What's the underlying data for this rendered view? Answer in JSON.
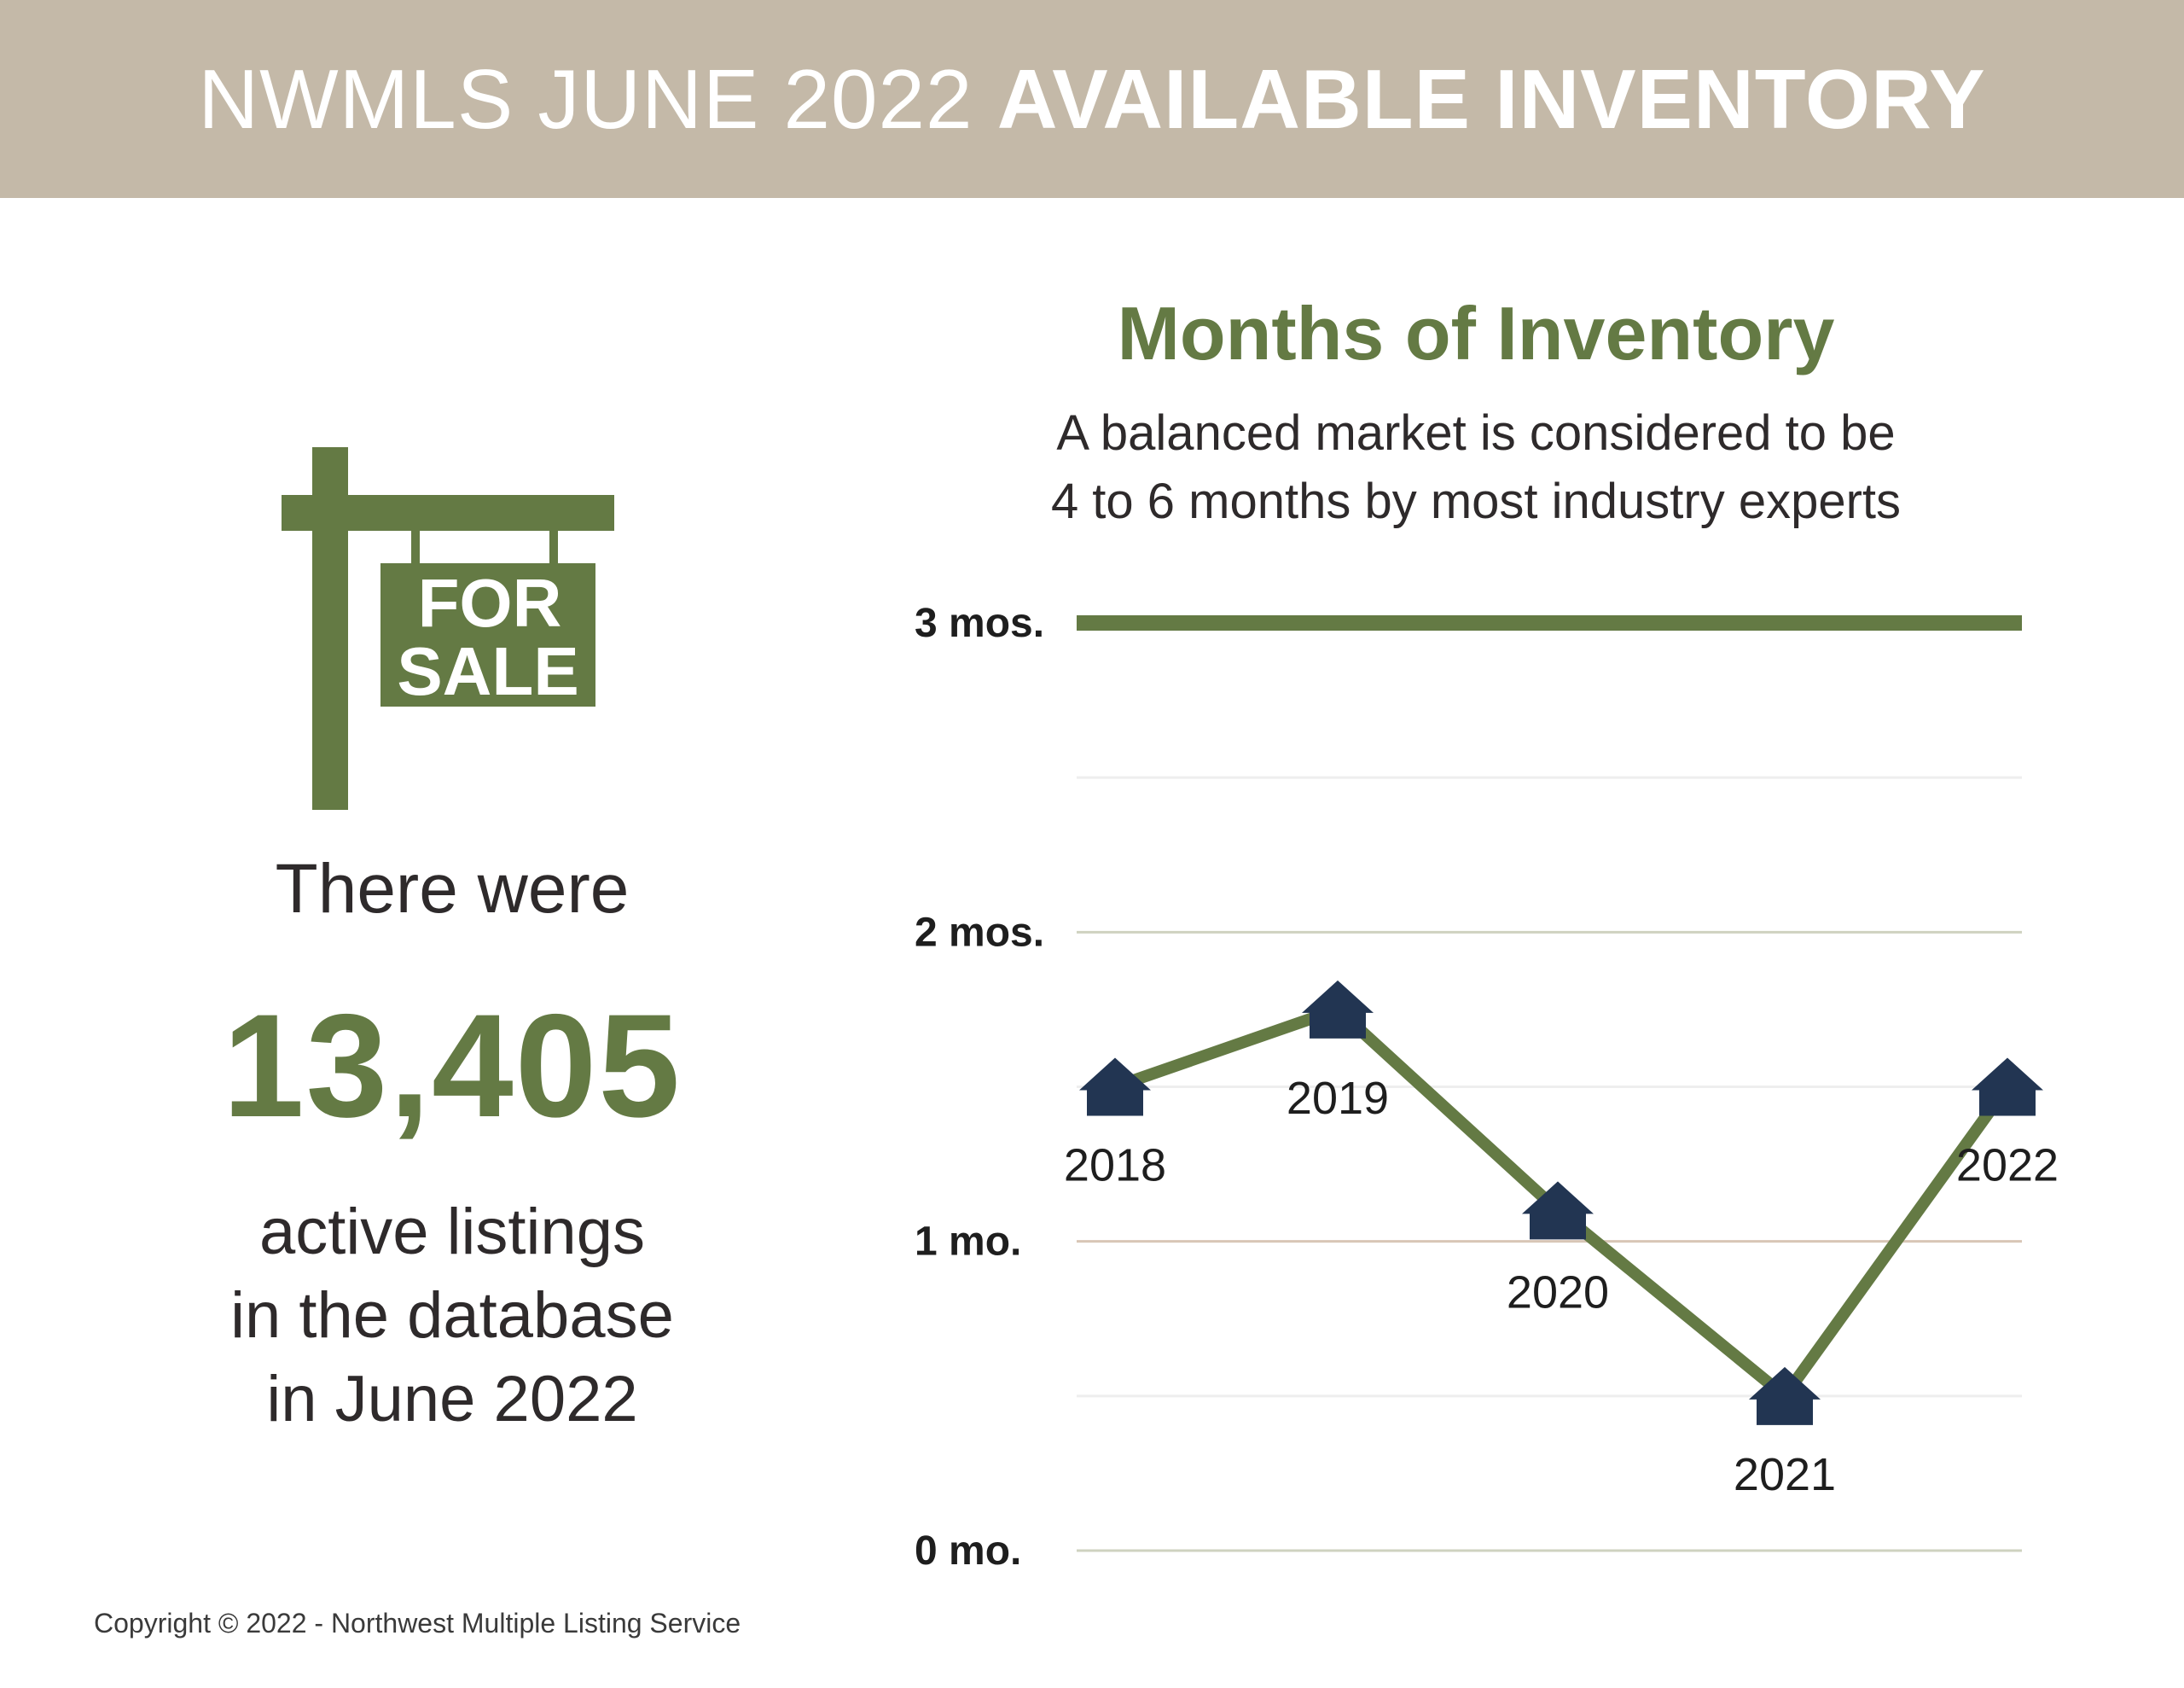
{
  "header": {
    "title_light": "NWMLS JUNE 2022",
    "title_bold": "AVAILABLE INVENTORY"
  },
  "sign": {
    "line1": "FOR",
    "line2": "SALE",
    "icon": "for-sale-sign-icon"
  },
  "summary": {
    "intro": "There were",
    "count": "13,405",
    "line1": "active listings",
    "line2": "in the database",
    "line3": "in June 2022"
  },
  "copyright": "Copyright © 2022 - Northwest Multiple Listing Service",
  "colors": {
    "banner": "#c4b9a8",
    "accent_green": "#647a44",
    "marker_navy": "#223552",
    "text_dark": "#2e2a2b"
  },
  "chart_data": {
    "type": "line",
    "title": "Months of Inventory",
    "subtitle": [
      "A balanced market is considered to be",
      "4 to 6 months by most industry experts"
    ],
    "x": [
      "2018",
      "2019",
      "2020",
      "2021",
      "2022"
    ],
    "series": [
      {
        "values": [
          1.5,
          1.75,
          1.1,
          0.5,
          1.5
        ]
      }
    ],
    "reference_line": {
      "value": 3,
      "label": "3 mos."
    },
    "yticks": [
      {
        "value": 0,
        "label": "0 mo."
      },
      {
        "value": 1,
        "label": "1 mo."
      },
      {
        "value": 2,
        "label": "2 mos."
      },
      {
        "value": 3,
        "label": "3 mos."
      }
    ],
    "ylim": [
      0,
      3
    ],
    "grid": true,
    "marker": "house-icon"
  }
}
